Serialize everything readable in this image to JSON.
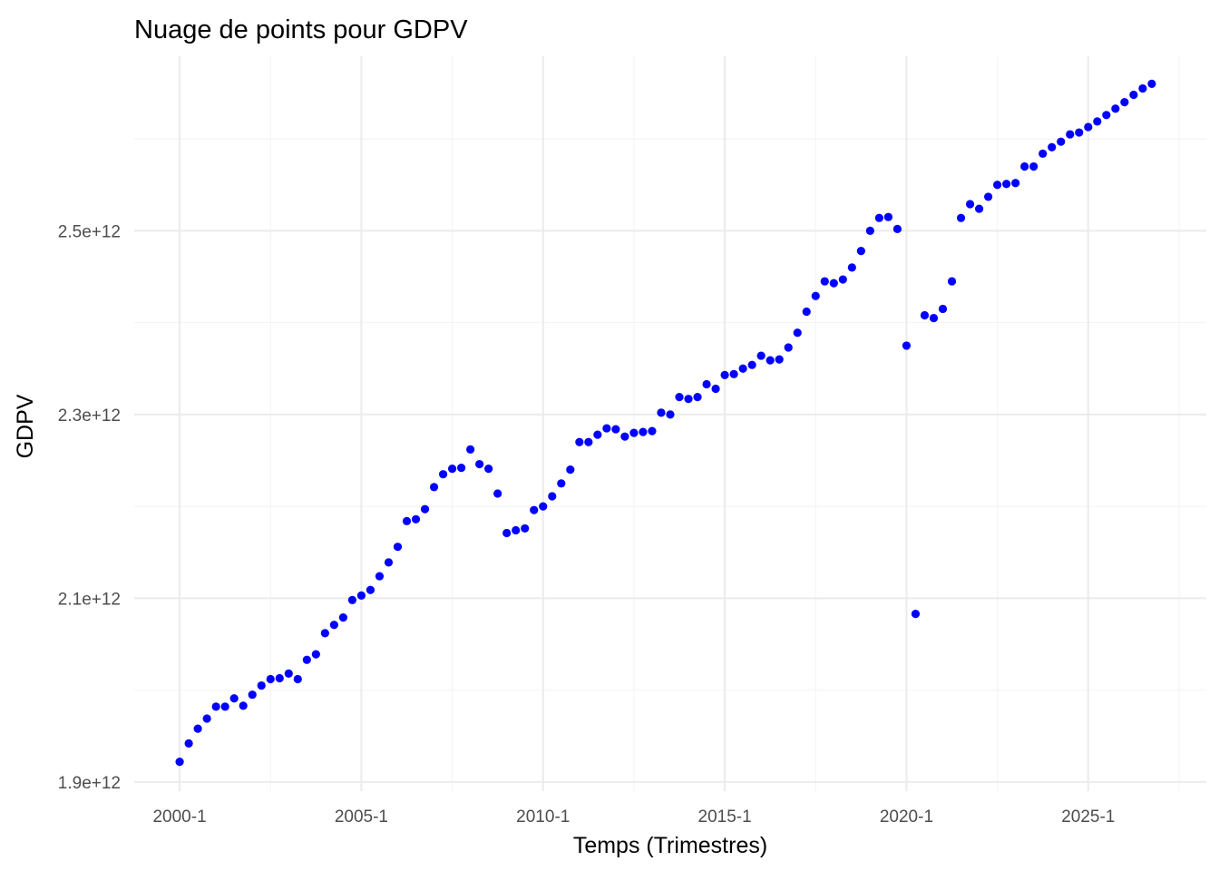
{
  "chart_data": {
    "type": "scatter",
    "title": "Nuage de points pour GDPV",
    "xlabel": "Temps (Trimestres)",
    "ylabel": "GDPV",
    "x_ticks": [
      {
        "value": 0,
        "label": "2000-1"
      },
      {
        "value": 20,
        "label": "2005-1"
      },
      {
        "value": 40,
        "label": "2010-1"
      },
      {
        "value": 60,
        "label": "2015-1"
      },
      {
        "value": 80,
        "label": "2020-1"
      },
      {
        "value": 100,
        "label": "2025-1"
      }
    ],
    "y_ticks": [
      {
        "value": 1900,
        "label": "1.9e+12"
      },
      {
        "value": 2100,
        "label": "2.1e+12"
      },
      {
        "value": 2300,
        "label": "2.3e+12"
      },
      {
        "value": 2500,
        "label": "2.5e+12"
      }
    ],
    "y_unit_note": "values in billions",
    "xlim": [
      -5,
      113
    ],
    "ylim": [
      1890,
      2690
    ],
    "grid": true,
    "point_color": "#0000ff",
    "x": [
      0,
      1,
      2,
      3,
      4,
      5,
      6,
      7,
      8,
      9,
      10,
      11,
      12,
      13,
      14,
      15,
      16,
      17,
      18,
      19,
      20,
      21,
      22,
      23,
      24,
      25,
      26,
      27,
      28,
      29,
      30,
      31,
      32,
      33,
      34,
      35,
      36,
      37,
      38,
      39,
      40,
      41,
      42,
      43,
      44,
      45,
      46,
      47,
      48,
      49,
      50,
      51,
      52,
      53,
      54,
      55,
      56,
      57,
      58,
      59,
      60,
      61,
      62,
      63,
      64,
      65,
      66,
      67,
      68,
      69,
      70,
      71,
      72,
      73,
      74,
      75,
      76,
      77,
      78,
      79,
      80,
      81,
      82,
      83,
      84,
      85,
      86,
      87,
      88,
      89,
      90,
      91,
      92,
      93,
      94,
      95,
      96,
      97,
      98,
      99,
      100,
      101,
      102,
      103,
      104,
      105,
      106,
      107
    ],
    "y": [
      1922,
      1942,
      1958,
      1969,
      1982,
      1982,
      1991,
      1983,
      1995,
      2005,
      2012,
      2013,
      2018,
      2012,
      2033,
      2039,
      2062,
      2071,
      2079,
      2098,
      2103,
      2109,
      2124,
      2139,
      2156,
      2184,
      2186,
      2197,
      2221,
      2235,
      2241,
      2242,
      2262,
      2246,
      2241,
      2214,
      2171,
      2174,
      2176,
      2196,
      2200,
      2211,
      2225,
      2240,
      2270,
      2270,
      2278,
      2285,
      2284,
      2276,
      2280,
      2281,
      2282,
      2302,
      2300,
      2319,
      2317,
      2319,
      2333,
      2328,
      2343,
      2344,
      2350,
      2354,
      2364,
      2359,
      2360,
      2373,
      2389,
      2412,
      2429,
      2445,
      2443,
      2447,
      2460,
      2478,
      2500,
      2514,
      2515,
      2502,
      2375,
      2083,
      2408,
      2405,
      2415,
      2445,
      2514,
      2529,
      2524,
      2537,
      2550,
      2551,
      2552,
      2570,
      2570,
      2584,
      2591,
      2597,
      2605,
      2607,
      2613,
      2619,
      2626,
      2633,
      2640,
      2648,
      2655,
      2660
    ]
  }
}
